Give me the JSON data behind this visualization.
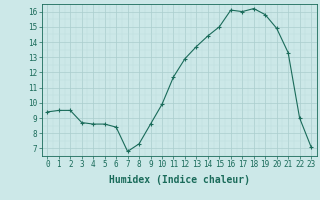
{
  "x": [
    0,
    1,
    2,
    3,
    4,
    5,
    6,
    7,
    8,
    9,
    10,
    11,
    12,
    13,
    14,
    15,
    16,
    17,
    18,
    19,
    20,
    21,
    22,
    23
  ],
  "y": [
    9.4,
    9.5,
    9.5,
    8.7,
    8.6,
    8.6,
    8.4,
    6.8,
    7.3,
    8.6,
    9.9,
    11.7,
    12.9,
    13.7,
    14.4,
    15.0,
    16.1,
    16.0,
    16.2,
    15.8,
    14.9,
    13.3,
    9.0,
    7.1
  ],
  "line_color": "#1a6b5a",
  "marker": "+",
  "marker_size": 3,
  "bg_color": "#cce8e8",
  "grid_major_color": "#aacece",
  "grid_minor_color": "#bbdddd",
  "xlabel": "Humidex (Indice chaleur)",
  "ylim": [
    6.5,
    16.5
  ],
  "xlim": [
    -0.5,
    23.5
  ],
  "yticks": [
    7,
    8,
    9,
    10,
    11,
    12,
    13,
    14,
    15,
    16
  ],
  "xticks": [
    0,
    1,
    2,
    3,
    4,
    5,
    6,
    7,
    8,
    9,
    10,
    11,
    12,
    13,
    14,
    15,
    16,
    17,
    18,
    19,
    20,
    21,
    22,
    23
  ],
  "tick_color": "#1a6b5a",
  "label_color": "#1a6b5a",
  "spine_color": "#1a6b5a",
  "xlabel_fontsize": 7,
  "tick_fontsize": 5.5,
  "linewidth": 0.8,
  "markeredgewidth": 0.8
}
